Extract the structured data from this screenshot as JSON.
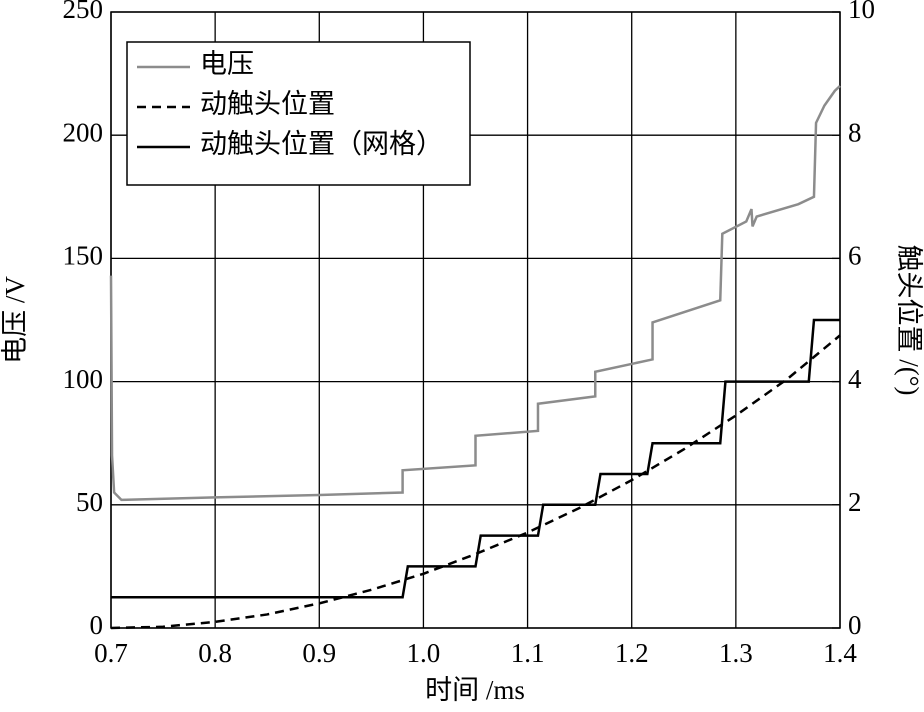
{
  "chart_data": {
    "type": "line",
    "x_label": "时间 /ms",
    "y_label": "电压 /V",
    "y2_label": "触头位置 /(°)",
    "xlim": [
      0.7,
      1.4
    ],
    "xticks": [
      0.7,
      0.8,
      0.9,
      {
        "value": 1,
        "label": "1.0"
      },
      1.1,
      1.2,
      1.3,
      1.4
    ],
    "ylim": [
      0,
      250
    ],
    "yticks": [
      0,
      50,
      100,
      150,
      200,
      250
    ],
    "y2lim": [
      0,
      10
    ],
    "y2ticks": [
      0,
      2,
      4,
      6,
      8,
      10
    ],
    "grid": true,
    "legend": "upper left",
    "series": [
      {
        "name": "电压",
        "color": "#8c8c8c",
        "dash": "solid",
        "axis": "y",
        "x": [
          0.7,
          0.701,
          0.703,
          0.71,
          0.8,
          0.9,
          0.98,
          0.98,
          1.05,
          1.05,
          1.11,
          1.11,
          1.165,
          1.165,
          1.22,
          1.22,
          1.285,
          1.287,
          1.31,
          1.315,
          1.316,
          1.32,
          1.36,
          1.375,
          1.377,
          1.385,
          1.395,
          1.4
        ],
        "values": [
          143,
          70,
          55,
          52,
          53,
          54,
          55,
          64,
          66,
          78,
          80,
          91,
          94,
          104,
          109,
          124,
          133,
          160,
          165,
          170,
          163,
          167,
          172,
          175,
          205,
          212,
          218,
          220
        ]
      },
      {
        "name": "动触头位置",
        "color": "#000000",
        "dash": "dashed",
        "axis": "y2",
        "x": [
          0.7,
          0.75,
          0.8,
          0.85,
          0.9,
          0.95,
          1.0,
          1.05,
          1.1,
          1.15,
          1.2,
          1.25,
          1.3,
          1.35,
          1.4
        ],
        "values": [
          0,
          0.02,
          0.1,
          0.22,
          0.4,
          0.62,
          0.88,
          1.2,
          1.55,
          1.95,
          2.4,
          2.9,
          3.45,
          4.05,
          4.75
        ]
      },
      {
        "name": "动触头位置（网格）",
        "color": "#000000",
        "dash": "solid",
        "axis": "y2",
        "x": [
          0.7,
          0.98,
          0.985,
          1.05,
          1.055,
          1.11,
          1.115,
          1.165,
          1.17,
          1.215,
          1.22,
          1.285,
          1.29,
          1.37,
          1.375,
          1.4
        ],
        "values": [
          0.5,
          0.5,
          1,
          1,
          1.5,
          1.5,
          2,
          2,
          2.5,
          2.5,
          3,
          3,
          4,
          4,
          5,
          5
        ]
      }
    ]
  }
}
